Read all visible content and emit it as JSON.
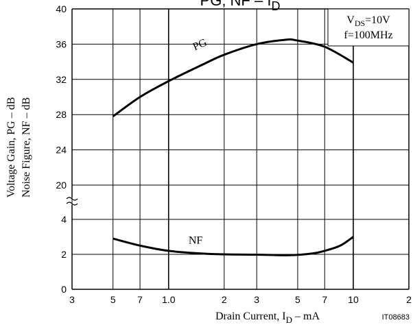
{
  "chart_data": {
    "type": "line",
    "title": {
      "main": "PG, NF  –  I",
      "sub": "D"
    },
    "xlabel": {
      "main": "Drain Current, I",
      "sub": "D",
      "tail": "  –  mA"
    },
    "ylabel": [
      "Voltage Gain, PG  –  dB",
      "Noise Figure, NF  –  dB"
    ],
    "annotation": {
      "line1_main": "V",
      "line1_sub": "DS",
      "line1_tail": "=10V",
      "line2": "f=100MHz"
    },
    "figure_id": "IT08683",
    "xscale": "log",
    "xlim": [
      0.3,
      20
    ],
    "xticks": [
      {
        "value": 0.3,
        "label": "3"
      },
      {
        "value": 0.5,
        "label": "5"
      },
      {
        "value": 0.7,
        "label": "7"
      },
      {
        "value": 1.0,
        "label": "1.0"
      },
      2,
      3,
      5,
      7,
      10,
      {
        "value": 20,
        "label": "2"
      }
    ],
    "ylim_lower": [
      0,
      4
    ],
    "ylim_upper": [
      20,
      40
    ],
    "yticks": [
      0,
      2,
      4,
      20,
      24,
      28,
      32,
      36,
      40
    ],
    "grid": true,
    "series": [
      {
        "name": "PG",
        "color": "#000000",
        "axis": "upper",
        "x": [
          0.5,
          0.7,
          1.0,
          1.5,
          2,
          3,
          4.3,
          5,
          7,
          10
        ],
        "values": [
          27.8,
          30.0,
          31.8,
          33.6,
          34.8,
          36.0,
          36.5,
          36.4,
          35.7,
          33.9
        ]
      },
      {
        "name": "NF",
        "color": "#000000",
        "axis": "lower",
        "x": [
          0.5,
          0.7,
          1.0,
          1.5,
          2,
          3,
          4.5,
          6,
          7,
          8.5,
          10
        ],
        "values": [
          2.9,
          2.5,
          2.2,
          2.05,
          2.0,
          1.98,
          1.95,
          2.05,
          2.2,
          2.5,
          3.0
        ]
      }
    ]
  }
}
